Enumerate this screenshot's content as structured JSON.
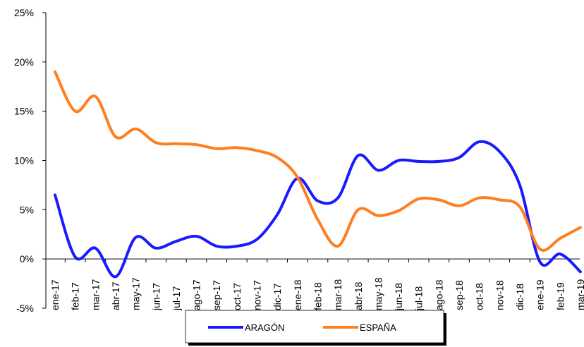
{
  "chart_data": {
    "type": "line",
    "categories": [
      "ene-17",
      "feb-17",
      "mar-17",
      "abr-17",
      "may-17",
      "jun-17",
      "jul-17",
      "ago-17",
      "sep-17",
      "oct-17",
      "nov-17",
      "dic-17",
      "ene-18",
      "feb-18",
      "mar-18",
      "abr-18",
      "may-18",
      "jun-18",
      "jul-18",
      "ago-18",
      "sep-18",
      "oct-18",
      "nov-18",
      "dic-18",
      "ene-19",
      "feb-19",
      "mar-19"
    ],
    "series": [
      {
        "name": "ARAGÓN",
        "color": "#1a1aff",
        "values": [
          6.5,
          0.2,
          1.1,
          -1.8,
          2.2,
          1.1,
          1.8,
          2.3,
          1.3,
          1.3,
          2.0,
          4.5,
          8.2,
          5.9,
          6.2,
          10.5,
          9.0,
          10.0,
          9.9,
          9.9,
          10.3,
          11.9,
          10.9,
          7.5,
          -0.3,
          0.5,
          -1.3
        ]
      },
      {
        "name": "ESPAÑA",
        "color": "#ff7f1f",
        "values": [
          19.0,
          15.0,
          16.5,
          12.4,
          13.2,
          11.8,
          11.7,
          11.6,
          11.2,
          11.3,
          11.0,
          10.3,
          8.3,
          4.0,
          1.3,
          5.0,
          4.4,
          4.9,
          6.1,
          6.0,
          5.4,
          6.2,
          6.0,
          5.3,
          1.0,
          2.1,
          3.2
        ]
      }
    ],
    "ylim": [
      -5,
      25
    ],
    "yticks": [
      {
        "value": -5,
        "label": "-5%"
      },
      {
        "value": 0,
        "label": "0%"
      },
      {
        "value": 5,
        "label": "5%"
      },
      {
        "value": 10,
        "label": "10%"
      },
      {
        "value": 15,
        "label": "15%"
      },
      {
        "value": 20,
        "label": "20%"
      },
      {
        "value": 25,
        "label": "25%"
      }
    ],
    "grid": false,
    "legend": "bottom"
  }
}
